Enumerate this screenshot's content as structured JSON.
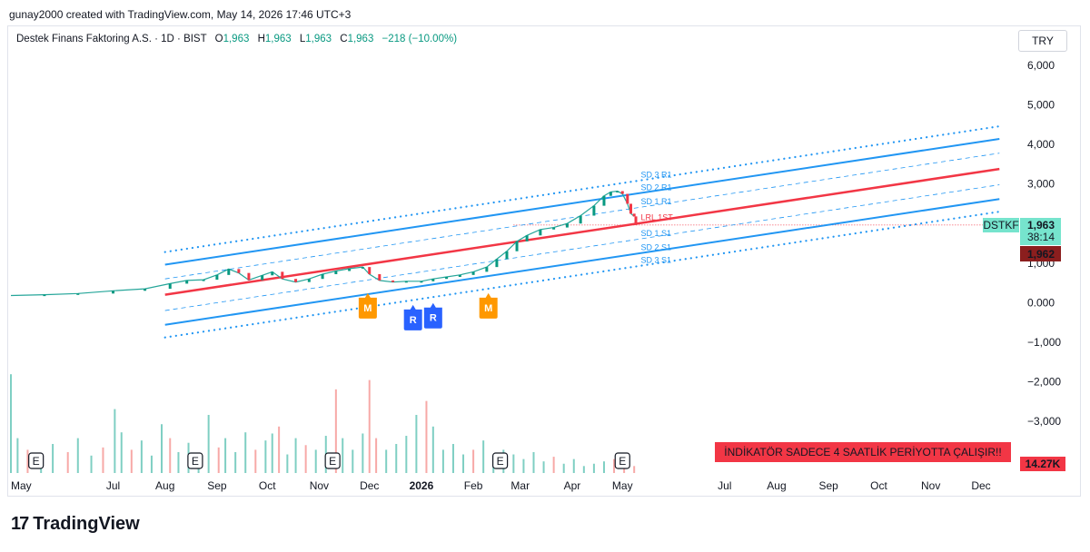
{
  "header": {
    "credit": "gunay2000 created with TradingView.com, May 14, 2026 17:46 UTC+3",
    "symbol": "Destek Finans Faktoring A.S. · 1D · BIST",
    "ohlc": [
      {
        "label": "O",
        "value": "1,963"
      },
      {
        "label": "H",
        "value": "1,963"
      },
      {
        "label": "L",
        "value": "1,963"
      },
      {
        "label": "C",
        "value": "1,963"
      }
    ],
    "change": "−218 (−10.00%)",
    "currency": "TRY"
  },
  "brand": {
    "logo": "17",
    "name": "TradingView"
  },
  "colors": {
    "up": "#089981",
    "down": "#f23645",
    "channel_blue": "#2196f3",
    "channel_red": "#f23645",
    "marker_orange": "#ff9800",
    "marker_blue": "#2962ff"
  },
  "chart_data": {
    "type": "candlestick",
    "y_axis": {
      "ticks": [
        {
          "value": 6000,
          "label": "6,000"
        },
        {
          "value": 5000,
          "label": "5,000"
        },
        {
          "value": 4000,
          "label": "4,000"
        },
        {
          "value": 3000,
          "label": "3,000"
        },
        {
          "value": 2000,
          "label": ""
        },
        {
          "value": 1000,
          "label": "1,000"
        },
        {
          "value": 0,
          "label": "0.000"
        },
        {
          "value": -1000,
          "label": "−1,000"
        },
        {
          "value": -2000,
          "label": "−2,000"
        },
        {
          "value": -3000,
          "label": "−3,000"
        }
      ],
      "range": [
        -4000,
        6400
      ]
    },
    "x_axis": {
      "labels": [
        {
          "label": "May",
          "day": 0,
          "bold": false
        },
        {
          "label": "Jul",
          "day": 61,
          "bold": false
        },
        {
          "label": "Aug",
          "day": 92,
          "bold": false
        },
        {
          "label": "Sep",
          "day": 123,
          "bold": false
        },
        {
          "label": "Oct",
          "day": 153,
          "bold": false
        },
        {
          "label": "Nov",
          "day": 184,
          "bold": false
        },
        {
          "label": "Dec",
          "day": 214,
          "bold": false
        },
        {
          "label": "2026",
          "day": 245,
          "bold": true
        },
        {
          "label": "Feb",
          "day": 276,
          "bold": false
        },
        {
          "label": "Mar",
          "day": 304,
          "bold": false
        },
        {
          "label": "Apr",
          "day": 335,
          "bold": false
        },
        {
          "label": "May",
          "day": 365,
          "bold": false
        },
        {
          "label": "Jul",
          "day": 426,
          "bold": false
        },
        {
          "label": "Aug",
          "day": 457,
          "bold": false
        },
        {
          "label": "Sep",
          "day": 488,
          "bold": false
        },
        {
          "label": "Oct",
          "day": 518,
          "bold": false
        },
        {
          "label": "Nov",
          "day": 549,
          "bold": false
        },
        {
          "label": "Dec",
          "day": 579,
          "bold": false
        }
      ]
    },
    "price_path": [
      [
        0,
        180
      ],
      [
        20,
        200
      ],
      [
        40,
        230
      ],
      [
        61,
        300
      ],
      [
        80,
        350
      ],
      [
        95,
        480
      ],
      [
        105,
        560
      ],
      [
        115,
        580
      ],
      [
        123,
        700
      ],
      [
        130,
        850
      ],
      [
        136,
        750
      ],
      [
        142,
        570
      ],
      [
        150,
        690
      ],
      [
        156,
        780
      ],
      [
        162,
        600
      ],
      [
        170,
        520
      ],
      [
        178,
        600
      ],
      [
        186,
        720
      ],
      [
        194,
        800
      ],
      [
        202,
        860
      ],
      [
        210,
        900
      ],
      [
        214,
        720
      ],
      [
        220,
        560
      ],
      [
        228,
        520
      ],
      [
        236,
        540
      ],
      [
        245,
        540
      ],
      [
        252,
        600
      ],
      [
        260,
        650
      ],
      [
        268,
        700
      ],
      [
        276,
        780
      ],
      [
        284,
        900
      ],
      [
        290,
        1100
      ],
      [
        296,
        1300
      ],
      [
        302,
        1550
      ],
      [
        308,
        1700
      ],
      [
        316,
        1850
      ],
      [
        324,
        1900
      ],
      [
        332,
        2000
      ],
      [
        340,
        2200
      ],
      [
        348,
        2450
      ],
      [
        354,
        2700
      ],
      [
        358,
        2800
      ],
      [
        362,
        2820
      ],
      [
        365,
        2750
      ],
      [
        368,
        2500
      ],
      [
        370,
        2250
      ],
      [
        372,
        2181
      ]
    ],
    "last_bar": {
      "day": 373,
      "open": 2181,
      "close": 1963,
      "direction": "down"
    },
    "channel": {
      "start_day": 92,
      "end_day": 590,
      "midline": {
        "start": 200,
        "end": 3380
      },
      "bands": [
        {
          "name": "SD 3 R1",
          "offset": 1080,
          "style": "dotted",
          "color": "#2196f3"
        },
        {
          "name": "SD 2 R1",
          "offset": 760,
          "style": "solid",
          "color": "#2196f3"
        },
        {
          "name": "SD 1 R1",
          "offset": 400,
          "style": "dashed",
          "color": "#2196f3"
        },
        {
          "name": "LRL 1ST",
          "offset": 0,
          "style": "solid",
          "color": "#f23645"
        },
        {
          "name": "SD 1 S1",
          "offset": -400,
          "style": "dashed",
          "color": "#2196f3"
        },
        {
          "name": "SD 2 S1",
          "offset": -760,
          "style": "solid",
          "color": "#2196f3"
        },
        {
          "name": "SD 3 S1",
          "offset": -1080,
          "style": "dotted",
          "color": "#2196f3"
        }
      ],
      "label_day": 376
    },
    "markers": [
      {
        "label": "M",
        "day": 213,
        "value": -80,
        "color": "#ff9800"
      },
      {
        "label": "R",
        "day": 240,
        "value": -380,
        "color": "#2962ff"
      },
      {
        "label": "R",
        "day": 252,
        "value": -330,
        "color": "#2962ff"
      },
      {
        "label": "M",
        "day": 285,
        "value": -80,
        "color": "#ff9800"
      }
    ],
    "earnings_days": [
      15,
      110,
      192,
      292,
      365
    ],
    "earnings_label": "E",
    "price_tags": [
      {
        "ticker": "DSTKF",
        "value": "1,963",
        "countdown": "38:14",
        "price": 1963
      },
      {
        "value": "1,962",
        "price": 1962
      }
    ],
    "volume": {
      "last": "14.27K",
      "bars": [
        [
          0,
          0.85,
          "up"
        ],
        [
          4,
          0.3,
          "up"
        ],
        [
          10,
          0.2,
          "down"
        ],
        [
          18,
          0.12,
          "up"
        ],
        [
          25,
          0.25,
          "up"
        ],
        [
          34,
          0.18,
          "down"
        ],
        [
          40,
          0.3,
          "up"
        ],
        [
          48,
          0.15,
          "up"
        ],
        [
          55,
          0.22,
          "down"
        ],
        [
          62,
          0.55,
          "up"
        ],
        [
          66,
          0.35,
          "up"
        ],
        [
          72,
          0.2,
          "down"
        ],
        [
          78,
          0.28,
          "up"
        ],
        [
          84,
          0.15,
          "up"
        ],
        [
          90,
          0.42,
          "up"
        ],
        [
          95,
          0.3,
          "down"
        ],
        [
          100,
          0.18,
          "up"
        ],
        [
          106,
          0.26,
          "up"
        ],
        [
          112,
          0.14,
          "up"
        ],
        [
          118,
          0.5,
          "up"
        ],
        [
          124,
          0.22,
          "down"
        ],
        [
          128,
          0.3,
          "up"
        ],
        [
          134,
          0.18,
          "up"
        ],
        [
          140,
          0.35,
          "up"
        ],
        [
          146,
          0.2,
          "down"
        ],
        [
          152,
          0.28,
          "up"
        ],
        [
          156,
          0.34,
          "up"
        ],
        [
          160,
          0.4,
          "down"
        ],
        [
          165,
          0.16,
          "up"
        ],
        [
          170,
          0.3,
          "up"
        ],
        [
          176,
          0.24,
          "down"
        ],
        [
          182,
          0.2,
          "up"
        ],
        [
          188,
          0.32,
          "up"
        ],
        [
          194,
          0.72,
          "down"
        ],
        [
          198,
          0.3,
          "up"
        ],
        [
          204,
          0.2,
          "up"
        ],
        [
          210,
          0.34,
          "up"
        ],
        [
          214,
          0.8,
          "down"
        ],
        [
          218,
          0.3,
          "down"
        ],
        [
          224,
          0.2,
          "up"
        ],
        [
          230,
          0.25,
          "up"
        ],
        [
          236,
          0.32,
          "up"
        ],
        [
          242,
          0.5,
          "up"
        ],
        [
          248,
          0.62,
          "down"
        ],
        [
          252,
          0.4,
          "up"
        ],
        [
          258,
          0.2,
          "up"
        ],
        [
          264,
          0.25,
          "up"
        ],
        [
          270,
          0.16,
          "up"
        ],
        [
          276,
          0.2,
          "down"
        ],
        [
          282,
          0.28,
          "up"
        ],
        [
          288,
          0.12,
          "up"
        ],
        [
          294,
          0.2,
          "up"
        ],
        [
          300,
          0.16,
          "up"
        ],
        [
          306,
          0.12,
          "up"
        ],
        [
          312,
          0.18,
          "up"
        ],
        [
          318,
          0.1,
          "up"
        ],
        [
          324,
          0.14,
          "down"
        ],
        [
          330,
          0.08,
          "up"
        ],
        [
          336,
          0.12,
          "up"
        ],
        [
          342,
          0.06,
          "up"
        ],
        [
          348,
          0.08,
          "up"
        ],
        [
          354,
          0.1,
          "up"
        ],
        [
          360,
          0.12,
          "down"
        ],
        [
          366,
          0.1,
          "down"
        ],
        [
          372,
          0.06,
          "down"
        ]
      ]
    },
    "notice": "İNDİKATÖR SADECE 4 SAATLİK PERİYOTTA ÇALIŞIR!!"
  }
}
